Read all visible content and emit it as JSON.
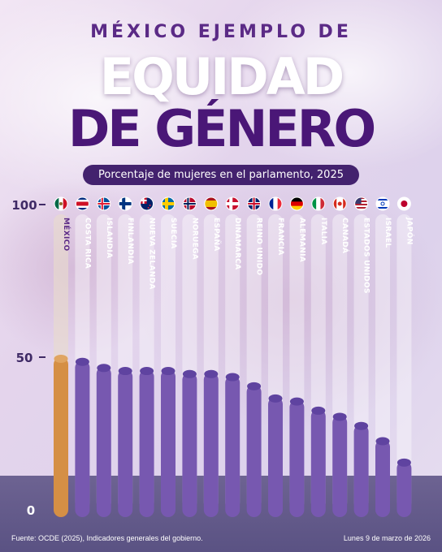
{
  "title": {
    "kicker": "MÉXICO EJEMPLO DE",
    "line1": "EQUIDAD",
    "line2": "DE GÉNERO"
  },
  "subtitle": "Porcentaje de mujeres en el parlamento, 2025",
  "footer": {
    "source": "Fuente: OCDE (2025), Indicadores generales del gobierno.",
    "date": "Lunes 9 de marzo de 2026"
  },
  "colors": {
    "highlight": "#d58f45",
    "bars": "#7758b0",
    "title_dark": "#4a1777",
    "pill": "#43226e"
  },
  "chart_data": {
    "type": "bar",
    "xlabel": "",
    "ylabel": "",
    "ylim": [
      0,
      100
    ],
    "y_ticks": [
      "100",
      "50",
      "0"
    ],
    "y_tick_values": [
      100,
      50,
      0
    ],
    "categories": [
      "MÉXICO",
      "COSTA RICA",
      "ISLANDIA",
      "FINLANDIA",
      "NUEVA ZELANDA",
      "SUECIA",
      "NORUEGA",
      "ESPAÑA",
      "DINAMARCA",
      "REINO UNIDO",
      "FRANCIA",
      "ALEMANIA",
      "ITALIA",
      "CANADÁ",
      "ESTADOS UNIDOS",
      "ISRAEL",
      "JAPÓN"
    ],
    "flags": [
      "mexico-flag-icon",
      "costa-rica-flag-icon",
      "iceland-flag-icon",
      "finland-flag-icon",
      "new-zealand-flag-icon",
      "sweden-flag-icon",
      "norway-flag-icon",
      "spain-flag-icon",
      "denmark-flag-icon",
      "uk-flag-icon",
      "france-flag-icon",
      "germany-flag-icon",
      "italy-flag-icon",
      "canada-flag-icon",
      "usa-flag-icon",
      "israel-flag-icon",
      "japan-flag-icon"
    ],
    "values": [
      50,
      49,
      47,
      46,
      46,
      46,
      45,
      45,
      44,
      41,
      37,
      36,
      33,
      31,
      28,
      23,
      16
    ],
    "highlight_index": 0
  }
}
